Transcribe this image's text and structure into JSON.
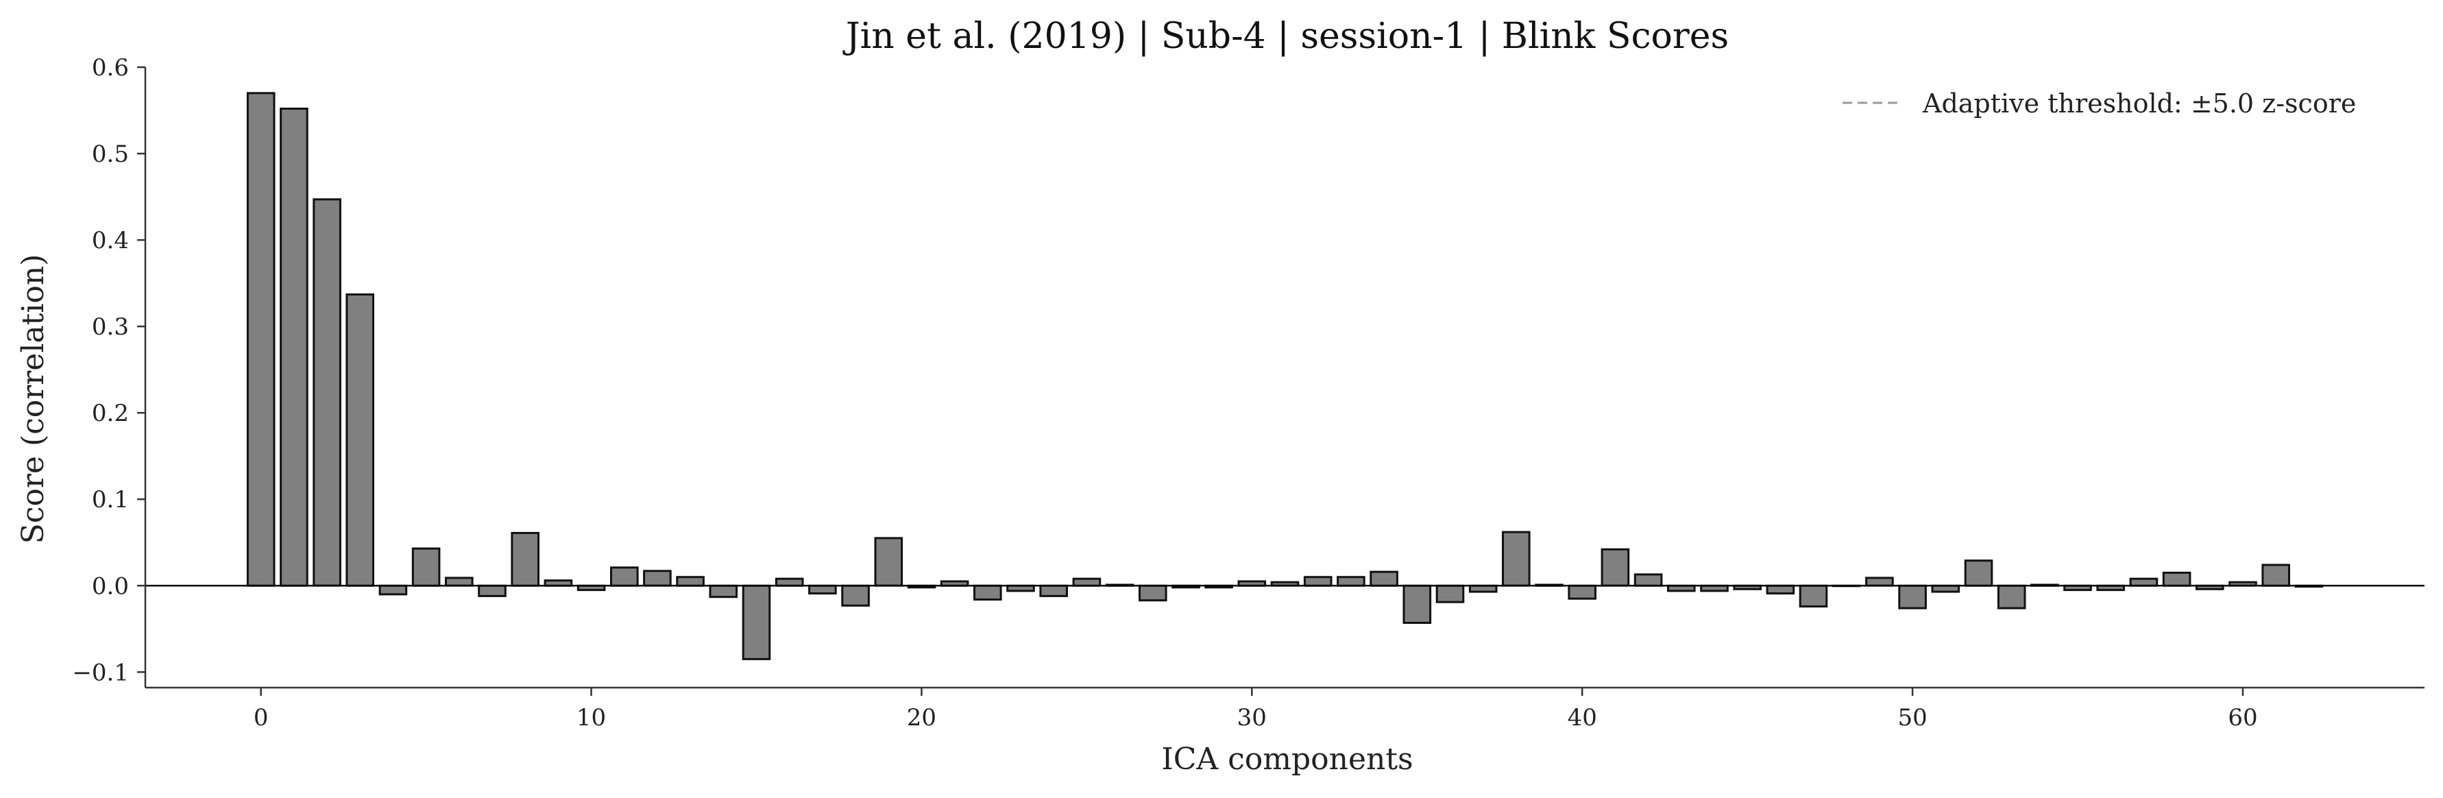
{
  "chart_data": {
    "type": "bar",
    "title": "Jin et al. (2019) | Sub-4 | session-1 | Blink Scores",
    "xlabel": "ICA components",
    "ylabel": "Score (correlation)",
    "x": [
      0,
      1,
      2,
      3,
      4,
      5,
      6,
      7,
      8,
      9,
      10,
      11,
      12,
      13,
      14,
      15,
      16,
      17,
      18,
      19,
      20,
      21,
      22,
      23,
      24,
      25,
      26,
      27,
      28,
      29,
      30,
      31,
      32,
      33,
      34,
      35,
      36,
      37,
      38,
      39,
      40,
      41,
      42,
      43,
      44,
      45,
      46,
      47,
      48,
      49,
      50,
      51,
      52,
      53,
      54,
      55,
      56,
      57,
      58,
      59,
      60,
      61,
      62
    ],
    "values": [
      0.57,
      0.552,
      0.447,
      0.337,
      -0.01,
      0.043,
      0.009,
      -0.012,
      0.061,
      0.006,
      -0.005,
      0.021,
      0.017,
      0.01,
      -0.013,
      -0.085,
      0.008,
      -0.009,
      -0.023,
      0.055,
      -0.002,
      0.005,
      -0.016,
      -0.006,
      -0.012,
      0.008,
      0.001,
      -0.017,
      -0.002,
      -0.002,
      0.005,
      0.004,
      0.01,
      0.01,
      0.016,
      -0.043,
      -0.019,
      -0.007,
      0.062,
      0.001,
      -0.015,
      0.042,
      0.013,
      -0.006,
      -0.006,
      -0.004,
      -0.009,
      -0.024,
      0.0,
      0.009,
      -0.026,
      -0.007,
      0.029,
      -0.026,
      0.001,
      -0.005,
      -0.005,
      0.008,
      0.015,
      -0.004,
      0.004,
      0.024,
      -0.001
    ],
    "xlim": [
      -3.5,
      65.5
    ],
    "ylim": [
      -0.118,
      0.6
    ],
    "xticks": [
      0,
      10,
      20,
      30,
      40,
      50,
      60
    ],
    "yticks": [
      -0.1,
      0.0,
      0.1,
      0.2,
      0.3,
      0.4,
      0.5,
      0.6
    ],
    "ytick_labels": [
      "−0.1",
      "0.0",
      "0.1",
      "0.2",
      "0.3",
      "0.4",
      "0.5",
      "0.6"
    ],
    "legend": {
      "label": "Adaptive threshold: ±5.0 z-score",
      "placement": "top-right",
      "line_style": "dashed"
    },
    "grid": false,
    "colors": {
      "bar_fill": "#808080",
      "bar_edge": "#111111",
      "threshold_line": "#999999",
      "zero_line": "#000000"
    }
  }
}
